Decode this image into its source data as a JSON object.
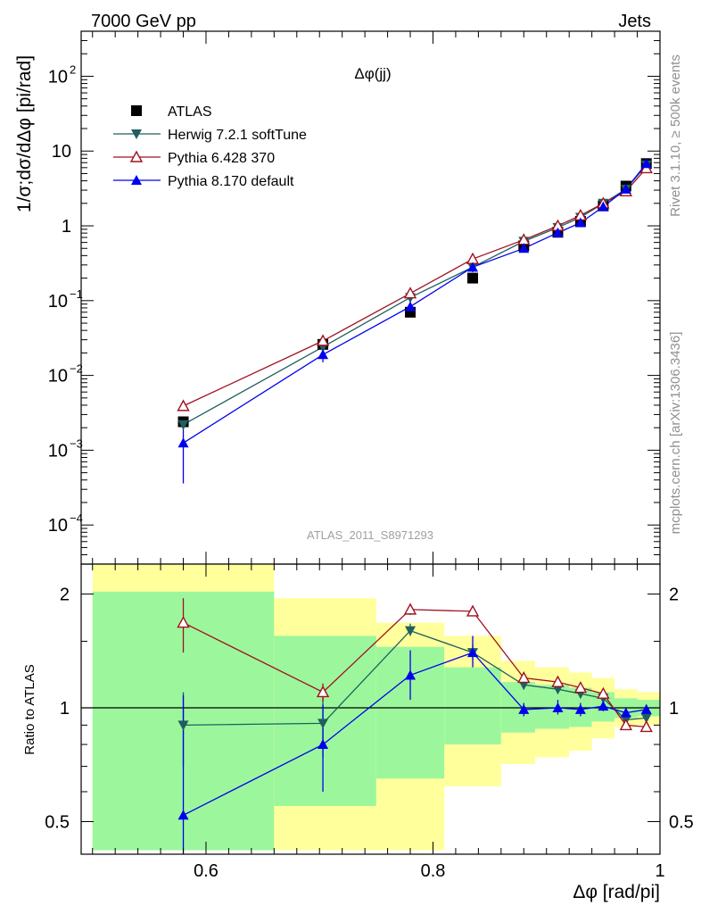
{
  "header": {
    "left": "7000 GeV pp",
    "right": "Jets"
  },
  "side_text": {
    "rivet": "Rivet 3.1.10, ≥ 500k events",
    "mcplots": "mcplots.cern.ch [arXiv:1306.3436]"
  },
  "colors": {
    "atlas": "#000000",
    "herwig": "#1f5f5f",
    "pythia6": "#a01020",
    "pythia8": "#0000ee",
    "band_green": "#9cf79c",
    "band_yellow": "#ffff9c"
  },
  "chart_data": [
    {
      "type": "scatter",
      "title": "Δφ(jj)",
      "watermark": "ATLAS_2011_S8971293",
      "ylabel": "1/σ;dσ/dΔφ [pi/rad]",
      "yscale": "log",
      "ylim": [
        3e-05,
        400
      ],
      "xlim": [
        0.49,
        1.0
      ],
      "yticks": [
        {
          "value": 100,
          "label": "10",
          "exp": "2"
        },
        {
          "value": 10,
          "label": "10",
          "exp": ""
        },
        {
          "value": 1,
          "label": "1",
          "exp": ""
        },
        {
          "value": 0.1,
          "label": "10",
          "exp": "−1"
        },
        {
          "value": 0.01,
          "label": "10",
          "exp": "−2"
        },
        {
          "value": 0.001,
          "label": "10",
          "exp": "−3"
        },
        {
          "value": 0.0001,
          "label": "10",
          "exp": "−4"
        }
      ],
      "legend": [
        "ATLAS",
        "Herwig 7.2.1 softTune",
        "Pythia 6.428 370",
        "Pythia 8.170 default"
      ],
      "series": [
        {
          "name": "ATLAS",
          "marker": "square",
          "x": [
            0.58,
            0.703,
            0.78,
            0.835,
            0.88,
            0.91,
            0.93,
            0.95,
            0.97,
            0.988
          ],
          "y": [
            0.0024,
            0.026,
            0.07,
            0.2,
            0.54,
            0.82,
            1.15,
            1.85,
            3.4,
            6.8
          ]
        },
        {
          "name": "Herwig 7.2.1 softTune",
          "marker": "triangle-down",
          "x": [
            0.58,
            0.703,
            0.78,
            0.835,
            0.88,
            0.91,
            0.93,
            0.95,
            0.97,
            0.988
          ],
          "y": [
            0.0022,
            0.024,
            0.11,
            0.28,
            0.62,
            0.95,
            1.3,
            2.0,
            3.1,
            6.5
          ]
        },
        {
          "name": "Pythia 6.428 370",
          "marker": "triangle-up-open",
          "x": [
            0.58,
            0.703,
            0.78,
            0.835,
            0.88,
            0.91,
            0.93,
            0.95,
            0.97,
            0.988
          ],
          "y": [
            0.0039,
            0.029,
            0.125,
            0.36,
            0.65,
            1.0,
            1.38,
            2.0,
            2.9,
            5.9
          ]
        },
        {
          "name": "Pythia 8.170 default",
          "marker": "triangle-up",
          "x": [
            0.58,
            0.703,
            0.78,
            0.835,
            0.88,
            0.91,
            0.93,
            0.95,
            0.97,
            0.988
          ],
          "y": [
            0.00125,
            0.019,
            0.083,
            0.28,
            0.5,
            0.81,
            1.1,
            1.8,
            3.1,
            6.8
          ],
          "yerr_low": [
            0.00036,
            0.015,
            0.07,
            0.24,
            0.45,
            0.75,
            1.05,
            1.72,
            3.0,
            6.5
          ],
          "yerr_high": [
            0.0026,
            0.024,
            0.1,
            0.32,
            0.55,
            0.87,
            1.16,
            1.9,
            3.2,
            7.1
          ]
        }
      ]
    },
    {
      "type": "scatter",
      "ylabel": "Ratio to ATLAS",
      "xlabel": "Δφ [rad/pi]",
      "yscale": "log",
      "ylim": [
        0.41,
        2.4
      ],
      "xlim": [
        0.49,
        1.0
      ],
      "xticks": [
        0.6,
        0.8,
        1
      ],
      "xtick_labels": [
        "0.6",
        "0.8",
        "1"
      ],
      "yticks": [
        0.5,
        1,
        2
      ],
      "ytick_labels": [
        "0.5",
        "1",
        "2"
      ],
      "bands": [
        {
          "x0": 0.5,
          "x1": 0.66,
          "green": [
            0.42,
            2.03
          ],
          "yellow": [
            0.42,
            2.4
          ]
        },
        {
          "x0": 0.66,
          "x1": 0.75,
          "green": [
            0.55,
            1.55
          ],
          "yellow": [
            0.42,
            1.95
          ]
        },
        {
          "x0": 0.75,
          "x1": 0.81,
          "green": [
            0.65,
            1.45
          ],
          "yellow": [
            0.42,
            1.68
          ]
        },
        {
          "x0": 0.81,
          "x1": 0.86,
          "green": [
            0.8,
            1.28
          ],
          "yellow": [
            0.62,
            1.55
          ]
        },
        {
          "x0": 0.86,
          "x1": 0.89,
          "green": [
            0.86,
            1.17
          ],
          "yellow": [
            0.71,
            1.33
          ]
        },
        {
          "x0": 0.89,
          "x1": 0.92,
          "green": [
            0.88,
            1.15
          ],
          "yellow": [
            0.74,
            1.28
          ]
        },
        {
          "x0": 0.92,
          "x1": 0.94,
          "green": [
            0.89,
            1.13
          ],
          "yellow": [
            0.77,
            1.24
          ]
        },
        {
          "x0": 0.94,
          "x1": 0.96,
          "green": [
            0.92,
            1.1
          ],
          "yellow": [
            0.83,
            1.2
          ]
        },
        {
          "x0": 0.96,
          "x1": 0.98,
          "green": [
            0.94,
            1.06
          ],
          "yellow": [
            0.89,
            1.12
          ]
        },
        {
          "x0": 0.98,
          "x1": 1.0,
          "green": [
            0.95,
            1.05
          ],
          "yellow": [
            0.9,
            1.1
          ]
        }
      ],
      "series": [
        {
          "name": "Herwig 7.2.1 softTune",
          "marker": "triangle-down",
          "x": [
            0.58,
            0.703,
            0.78,
            0.835,
            0.88,
            0.91,
            0.93,
            0.95,
            0.97,
            0.988
          ],
          "y": [
            0.9,
            0.91,
            1.6,
            1.4,
            1.15,
            1.12,
            1.09,
            1.06,
            0.93,
            0.94
          ],
          "yerr_low": [
            0.7,
            0.74,
            1.55,
            1.34,
            1.12,
            1.09,
            1.06,
            1.04,
            0.91,
            0.92
          ],
          "yerr_high": [
            1.1,
            1.08,
            1.67,
            1.47,
            1.18,
            1.15,
            1.11,
            1.08,
            0.95,
            0.96
          ]
        },
        {
          "name": "Pythia 6.428 370",
          "marker": "triangle-up-open",
          "x": [
            0.58,
            0.703,
            0.78,
            0.835,
            0.88,
            0.91,
            0.93,
            0.95,
            0.97,
            0.988
          ],
          "y": [
            1.68,
            1.1,
            1.82,
            1.8,
            1.2,
            1.17,
            1.13,
            1.09,
            0.9,
            0.89
          ],
          "yerr_low": [
            1.4,
            1.04,
            1.76,
            1.75,
            1.17,
            1.14,
            1.11,
            1.07,
            0.89,
            0.88
          ],
          "yerr_high": [
            1.95,
            1.16,
            1.88,
            1.85,
            1.23,
            1.2,
            1.15,
            1.11,
            0.91,
            0.9
          ]
        },
        {
          "name": "Pythia 8.170 default",
          "marker": "triangle-up",
          "x": [
            0.58,
            0.703,
            0.78,
            0.835,
            0.88,
            0.91,
            0.93,
            0.95,
            0.97,
            0.988
          ],
          "y": [
            0.52,
            0.8,
            1.22,
            1.4,
            0.99,
            1.0,
            0.99,
            1.01,
            0.97,
            0.99
          ],
          "yerr_low": [
            0.41,
            0.6,
            1.05,
            1.28,
            0.95,
            0.96,
            0.95,
            0.98,
            0.94,
            0.97
          ],
          "yerr_high": [
            1.08,
            1.02,
            1.42,
            1.55,
            1.03,
            1.05,
            1.03,
            1.05,
            1.0,
            1.02
          ]
        }
      ]
    }
  ]
}
